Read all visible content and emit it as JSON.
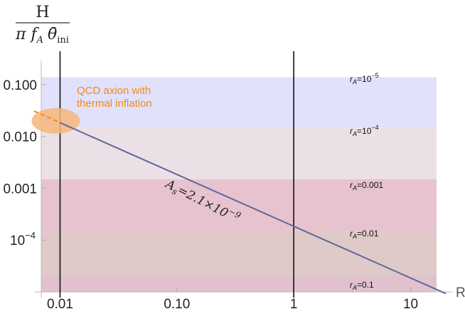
{
  "chart_data": {
    "type": "line",
    "title": "",
    "xlabel": "R",
    "ylabel": "H / (π f_A θ̄_ini)",
    "ylabel_numerator": "H",
    "ylabel_denominator": "π f",
    "ylabel_denominator_sub": "A",
    "ylabel_theta": "θ̄",
    "ylabel_theta_sub": "ini",
    "x_scale": "log",
    "y_scale": "log",
    "xlim": [
      0.006,
      24
    ],
    "ylim": [
      1e-05,
      0.25
    ],
    "x_ticks": [
      {
        "value": 0.01,
        "label": "0.01"
      },
      {
        "value": 0.1,
        "label": "0.10"
      },
      {
        "value": 1,
        "label": "1"
      },
      {
        "value": 10,
        "label": "10"
      }
    ],
    "y_ticks": [
      {
        "value": 0.1,
        "label": "0.100"
      },
      {
        "value": 0.01,
        "label": "0.010"
      },
      {
        "value": 0.001,
        "label": "0.001"
      },
      {
        "value": 0.0001,
        "label": "10",
        "exp": "−4"
      }
    ],
    "vertical_lines": [
      0.01,
      1
    ],
    "bands": [
      {
        "r_value": "10",
        "r_exp": "−5",
        "y_min": 0.015,
        "y_max": 0.14,
        "color": "#dcdcfb"
      },
      {
        "r_value": "10",
        "r_exp": "−4",
        "y_min": 0.0015,
        "y_max": 0.015,
        "color": "#e9dbe3"
      },
      {
        "r_value": "0.001",
        "r_exp": "",
        "y_min": 0.00015,
        "y_max": 0.0015,
        "color": "#e3b9c7"
      },
      {
        "r_value": "0.01",
        "r_exp": "",
        "y_min": 2.1e-05,
        "y_max": 0.00015,
        "color": "#d9c1bf"
      },
      {
        "r_value": "0.1",
        "r_exp": "",
        "y_min": 1e-05,
        "y_max": 2.1e-05,
        "color": "#ddb6c6"
      }
    ],
    "band_label_prefix": "r",
    "band_label_sub": "A",
    "series": [
      {
        "name": "As=2.1×10⁻⁹",
        "color": "#5e6a9a",
        "x": [
          0.01,
          1,
          20
        ],
        "y": [
          0.0185,
          0.000185,
          9.3e-06
        ]
      }
    ],
    "dashed_segment": {
      "color": "#f28a14",
      "x": [
        0.006,
        0.01
      ],
      "y": [
        0.031,
        0.0185
      ]
    },
    "line_label": {
      "A": "A",
      "s": "s",
      "rest": "=2.1×10",
      "exp": "−9"
    },
    "annotation": {
      "line1": "QCD axion with",
      "line2": "thermal inflation",
      "color": "#f28a14"
    },
    "highlight": {
      "x": 0.0092,
      "y": 0.02,
      "color": "#f6b67a"
    }
  }
}
